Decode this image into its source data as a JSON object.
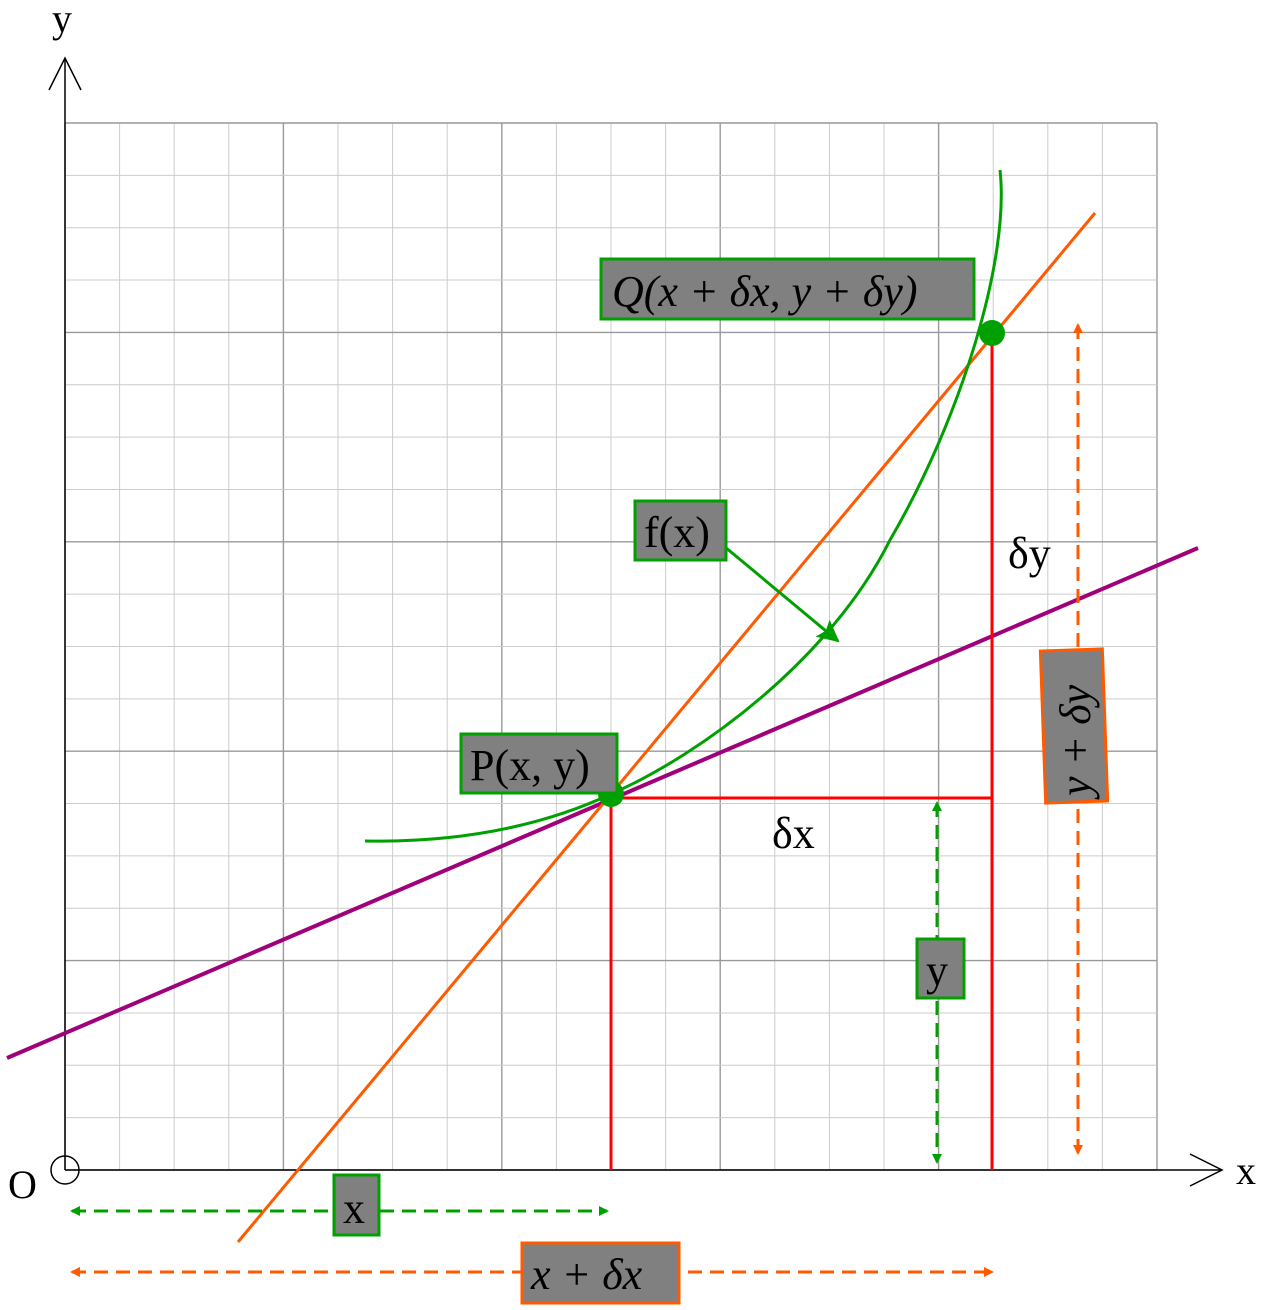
{
  "axes": {
    "x_label": "x",
    "y_label": "y",
    "origin_label": "O"
  },
  "labels": {
    "point_p": "P(x, y)",
    "point_q": "Q(x + δx, y + δy)",
    "function": "f(x)",
    "delta_x": "δx",
    "delta_y": "δy",
    "x_measure": "x",
    "y_measure": "y",
    "x_plus_dx": "x + δx",
    "y_plus_dy": "y + δy"
  },
  "colors": {
    "curve": "#00a000",
    "secant": "#ff5a00",
    "tangent": "#a0007a",
    "increments": "#ff0000",
    "grid_minor": "#cccccc",
    "grid_major": "#999999",
    "label_box_fill": "#808080"
  }
}
